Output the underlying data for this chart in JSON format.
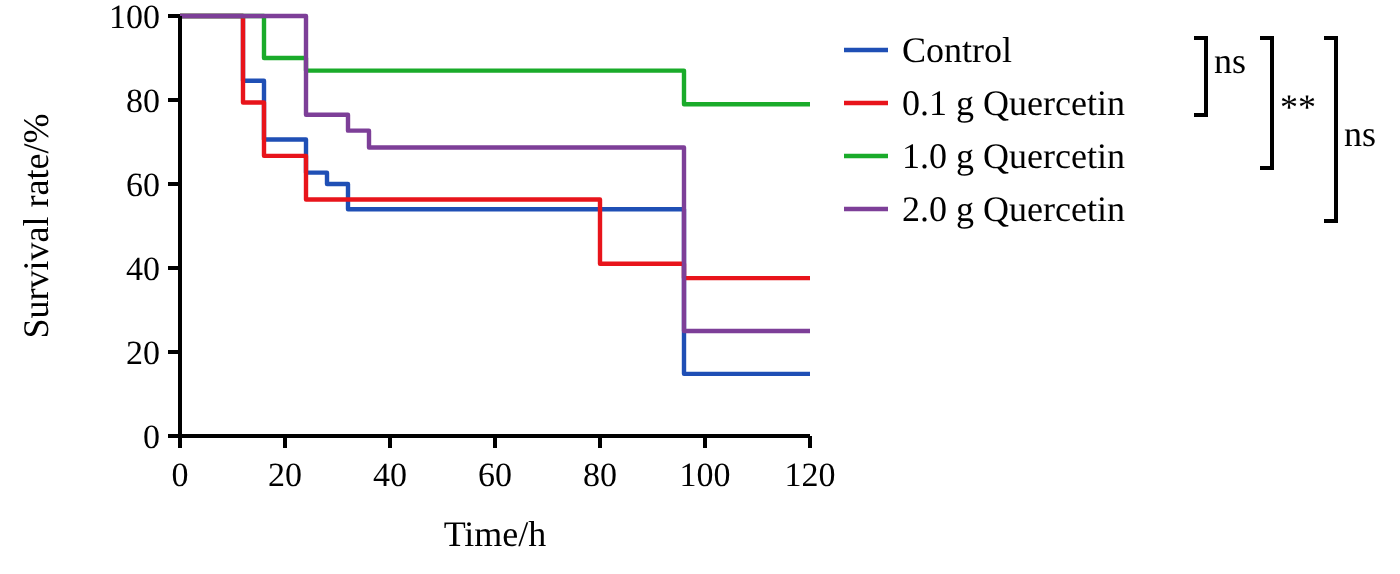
{
  "chart_data": {
    "type": "step",
    "xlabel": "Time/h",
    "ylabel": "Survival rate/%",
    "xlim": [
      0,
      120
    ],
    "ylim": [
      0,
      100
    ],
    "xticks": [
      0,
      20,
      40,
      60,
      80,
      100,
      120
    ],
    "yticks": [
      0,
      20,
      40,
      60,
      80,
      100
    ],
    "grid": false,
    "legend": "right",
    "line_style": "solid",
    "marker": "none",
    "series": [
      {
        "name": "Control",
        "color": "#1f4fb5",
        "x": [
          0,
          12,
          16,
          24,
          28,
          32,
          96,
          120
        ],
        "values": [
          100,
          84.6,
          70.6,
          62.7,
          60,
          54,
          14.8,
          14.8
        ]
      },
      {
        "name": "0.1 g Quercetin",
        "color": "#e8141b",
        "x": [
          0,
          12,
          16,
          24,
          80,
          96,
          120
        ],
        "values": [
          100,
          79.4,
          66.7,
          56.3,
          41,
          37.6,
          37.6
        ]
      },
      {
        "name": "1.0 g Quercetin",
        "color": "#1aab2a",
        "x": [
          0,
          16,
          24,
          96,
          120
        ],
        "values": [
          100,
          90,
          87,
          79,
          79
        ]
      },
      {
        "name": "2.0 g Quercetin",
        "color": "#7d3f98",
        "x": [
          0,
          24,
          32,
          36,
          96,
          120
        ],
        "values": [
          100,
          76.5,
          72.7,
          68.7,
          25,
          25
        ]
      }
    ],
    "annotations": [
      "ns",
      "**",
      "ns"
    ]
  }
}
